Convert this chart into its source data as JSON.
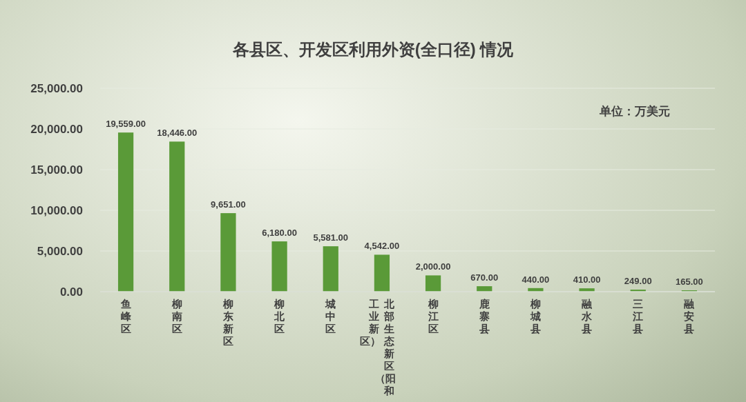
{
  "chart_data": {
    "type": "bar",
    "title": "各县区、开发区利用外资(全口径) 情况",
    "categories": [
      "鱼峰区",
      "柳南区",
      "柳东新区",
      "柳北区",
      "城中区",
      "北部生态新区（阳和工业新区）",
      "柳江区",
      "鹿寨县",
      "柳城县",
      "融水县",
      "三江县",
      "融安县"
    ],
    "values": [
      19559,
      18446,
      9651,
      6180,
      5581,
      4542,
      2000,
      670,
      440,
      410,
      249,
      165
    ],
    "value_labels": [
      "19,559.00",
      "18,446.00",
      "9,651.00",
      "6,180.00",
      "5,581.00",
      "4,542.00",
      "2,000.00",
      "670.00",
      "440.00",
      "410.00",
      "249.00",
      "165.00"
    ],
    "color": "#5a9a38",
    "ylim": [
      0,
      25000
    ],
    "yticks": [
      {
        "value": 0,
        "label": "0.00"
      },
      {
        "value": 5000,
        "label": "5,000.00"
      },
      {
        "value": 10000,
        "label": "10,000.00"
      },
      {
        "value": 15000,
        "label": "15,000.00"
      },
      {
        "value": 20000,
        "label": "20,000.00"
      },
      {
        "value": 25000,
        "label": "25,000.00"
      }
    ],
    "grid": "y",
    "annotations": [
      "单位：万美元"
    ]
  }
}
